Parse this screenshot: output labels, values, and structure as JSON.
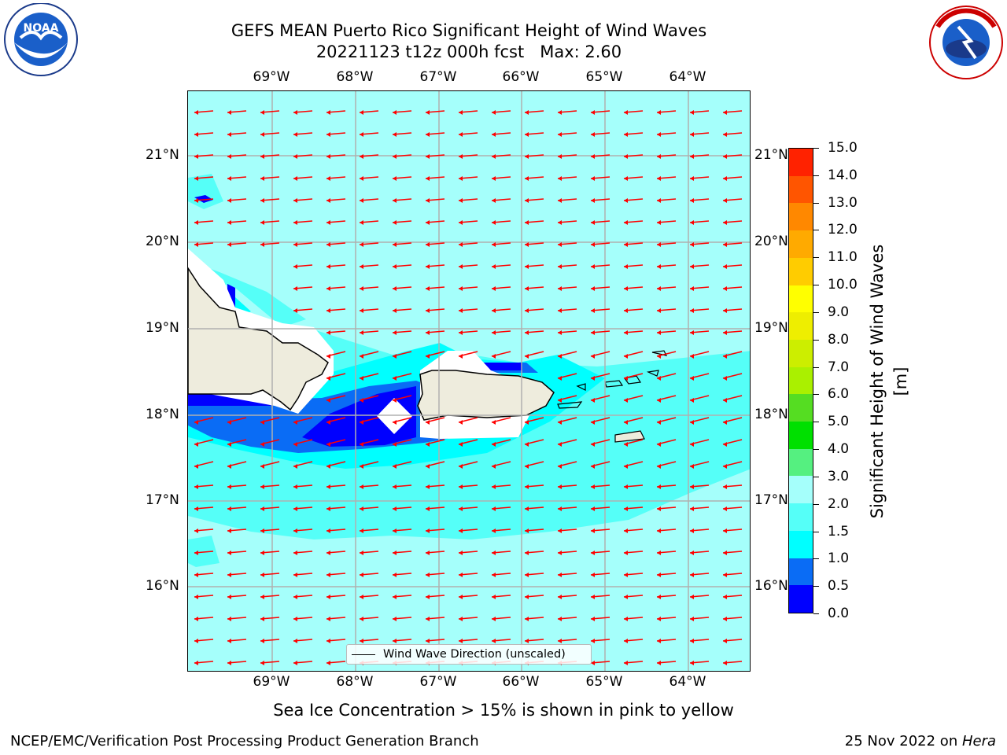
{
  "header": {
    "title_line1": "GEFS MEAN Puerto Rico Significant Height of Wind Waves",
    "title_line2": "20221123 t12z 000h fcst   Max: 2.60"
  },
  "logos": {
    "left": {
      "name": "noaa-logo",
      "text": "NOAA",
      "ring_text": "NATIONAL OCEANIC AND ATMOSPHERIC ADMINISTRATION · U.S. DEPARTMENT OF COMMERCE"
    },
    "right": {
      "name": "nws-logo",
      "ring_text": "NATIONAL WEATHER SERVICE"
    }
  },
  "map": {
    "lon_labels": [
      "69°W",
      "68°W",
      "67°W",
      "66°W",
      "65°W",
      "64°W"
    ],
    "lat_labels": [
      "21°N",
      "20°N",
      "19°N",
      "18°N",
      "17°N",
      "16°N"
    ],
    "legend_label": "Wind Wave Direction (unscaled)",
    "colors": {
      "land": "#eeecdd",
      "arrow": "#ff0000",
      "coast": "#000000",
      "grid": "#b0b0b0"
    }
  },
  "colorbar": {
    "label": "Significant Height of Wind Waves [m]",
    "ticks": [
      "0.0",
      "0.5",
      "1.0",
      "1.5",
      "2.0",
      "3.0",
      "4.0",
      "5.0",
      "6.0",
      "7.0",
      "8.0",
      "9.0",
      "10.0",
      "11.0",
      "12.0",
      "13.0",
      "14.0",
      "15.0"
    ],
    "colors": [
      "#0000ff",
      "#0a6cf5",
      "#00ffff",
      "#55fff8",
      "#a5fffb",
      "#55f080",
      "#00e000",
      "#55dd22",
      "#aaf000",
      "#ccee00",
      "#eeee00",
      "#ffff00",
      "#ffcc00",
      "#ffaa00",
      "#ff8800",
      "#ff5500",
      "#ff2200"
    ]
  },
  "notes": {
    "sea_ice": "Sea Ice Concentration > 15% is shown in pink to yellow",
    "footer_left": "NCEP/EMC/Verification Post Processing Product Generation Branch",
    "footer_date": "25 Nov 2022 on ",
    "footer_host": "Hera"
  }
}
